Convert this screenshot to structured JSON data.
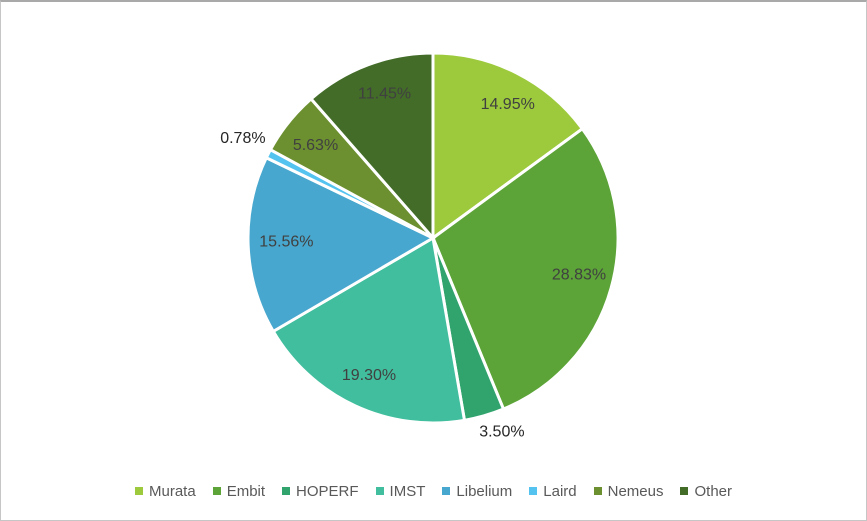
{
  "page": {
    "background": "#ffffff",
    "border_color": "#c6c6c6"
  },
  "chart_data": {
    "type": "pie",
    "title": "",
    "direction": "clockwise",
    "start_angle_deg": 0,
    "legend_position": "bottom",
    "slice_border_color": "#ffffff",
    "label_color_inside": "#404040",
    "label_color_outside": "#262626",
    "legend_text_color": "#595959",
    "series": [
      {
        "label": "Murata",
        "value": 14.95,
        "display": "14.95%",
        "color": "#9cca3c",
        "label_placement": "inside",
        "label_dx": 6,
        "label_dy": 2
      },
      {
        "label": "Embit",
        "value": 28.83,
        "display": "28.83%",
        "color": "#5ca437",
        "label_placement": "inside",
        "label_dx": 0,
        "label_dy": -4
      },
      {
        "label": "HOPERF",
        "value": 3.5,
        "display": "3.50%",
        "color": "#31a46e",
        "label_placement": "outside",
        "label_dx": 11,
        "label_dy": -7
      },
      {
        "label": "IMST",
        "value": 19.3,
        "display": "19.30%",
        "color": "#41be9d",
        "label_placement": "inside",
        "label_dx": 0,
        "label_dy": 0
      },
      {
        "label": "Libelium",
        "value": 15.56,
        "display": "15.56%",
        "color": "#48a7ce",
        "label_placement": "inside",
        "label_dx": 5,
        "label_dy": -2
      },
      {
        "label": "Laird",
        "value": 0.78,
        "display": "0.78%",
        "color": "#55c3f0",
        "label_placement": "outside",
        "label_dx": -4,
        "label_dy": -4
      },
      {
        "label": "Nemeus",
        "value": 5.63,
        "display": "5.63%",
        "color": "#6c9030",
        "label_placement": "inside",
        "label_dx": 1,
        "label_dy": 2
      },
      {
        "label": "Other",
        "value": 11.45,
        "display": "11.45%",
        "color": "#426c28",
        "label_placement": "inside",
        "label_dx": 5,
        "label_dy": -2
      }
    ]
  }
}
